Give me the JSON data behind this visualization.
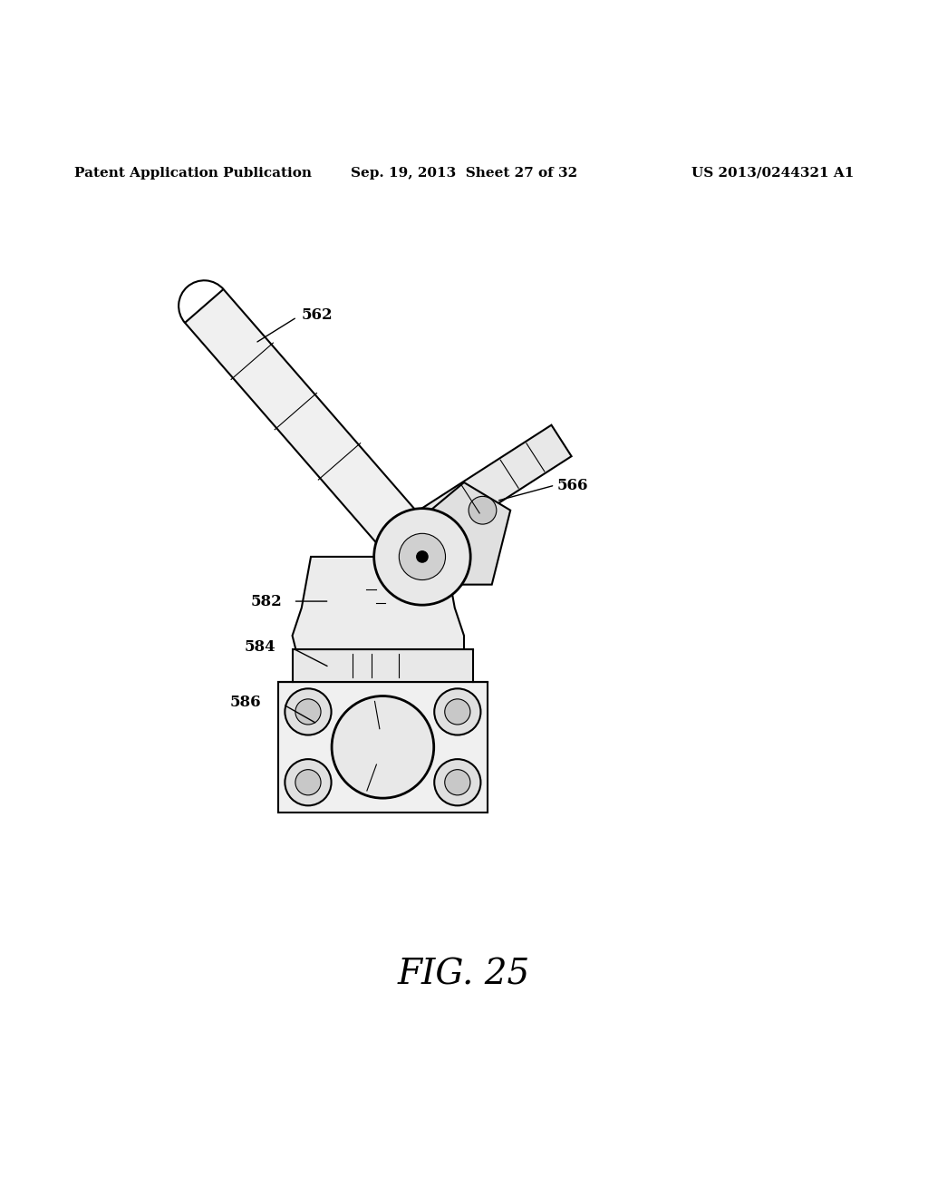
{
  "header_left": "Patent Application Publication",
  "header_mid": "Sep. 19, 2013  Sheet 27 of 32",
  "header_right": "US 2013/0244321 A1",
  "figure_label": "FIG. 25",
  "bg_color": "#ffffff",
  "line_color": "#000000",
  "header_fontsize": 11,
  "fig_label_fontsize": 28
}
